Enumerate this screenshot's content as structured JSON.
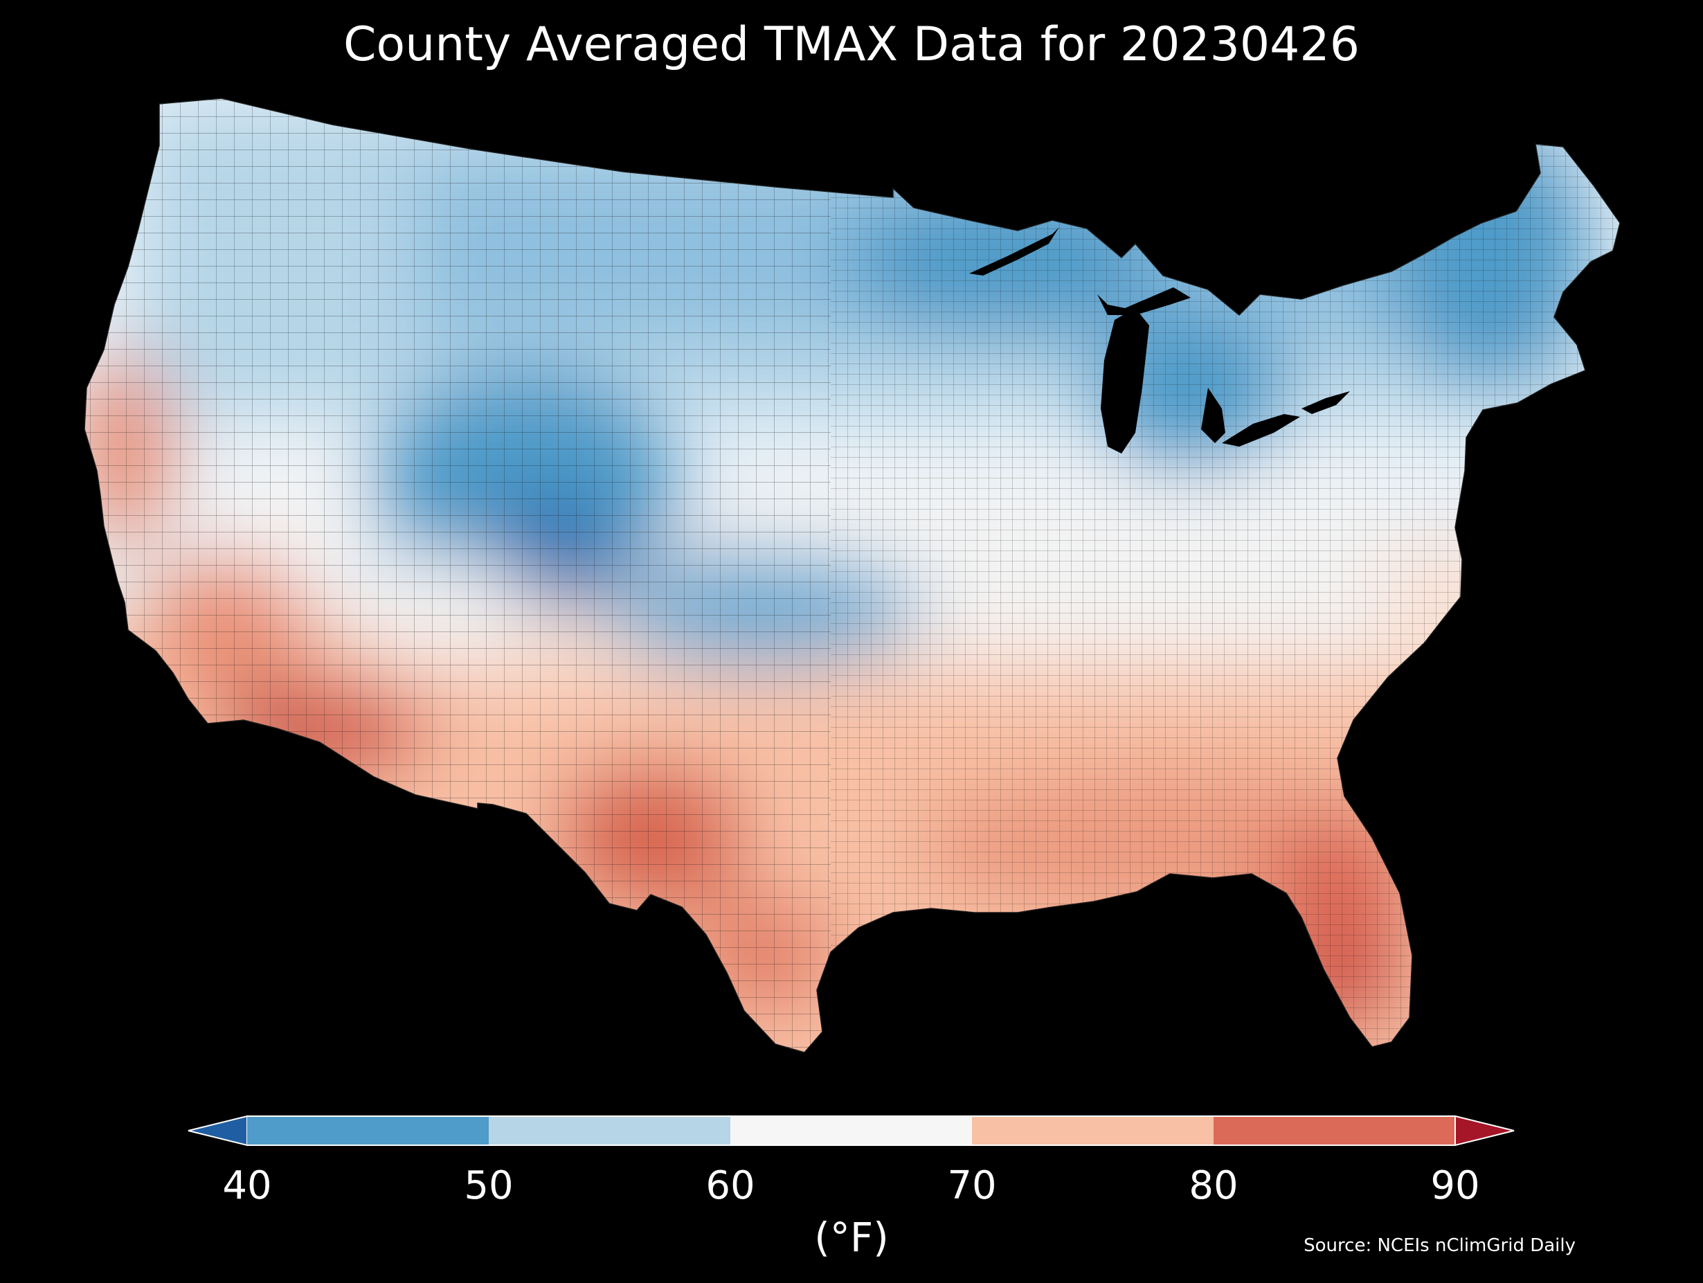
{
  "title": "County Averaged TMAX Data for 20230426",
  "source": "Source: NCEIs nClimGrid Daily",
  "colorbar": {
    "label": "(°F)",
    "ticks": [
      "40",
      "50",
      "60",
      "70",
      "80",
      "90"
    ],
    "bins": [
      {
        "from": 40,
        "to": 50,
        "color": "#4f9bc9"
      },
      {
        "from": 50,
        "to": 60,
        "color": "#b6d6e8"
      },
      {
        "from": 60,
        "to": 70,
        "color": "#f6f6f6"
      },
      {
        "from": 70,
        "to": 80,
        "color": "#f8c0a5"
      },
      {
        "from": 80,
        "to": 90,
        "color": "#dc6a59"
      }
    ],
    "under_color": "#1f5ea3",
    "over_color": "#a51628"
  },
  "map": {
    "region": "Contiguous United States",
    "unit_level": "county",
    "background": "#000000",
    "palette": [
      "#1f5ea3",
      "#4f9bc9",
      "#b6d6e8",
      "#f6f6f6",
      "#f8c0a5",
      "#dc6a59",
      "#a51628"
    ]
  }
}
